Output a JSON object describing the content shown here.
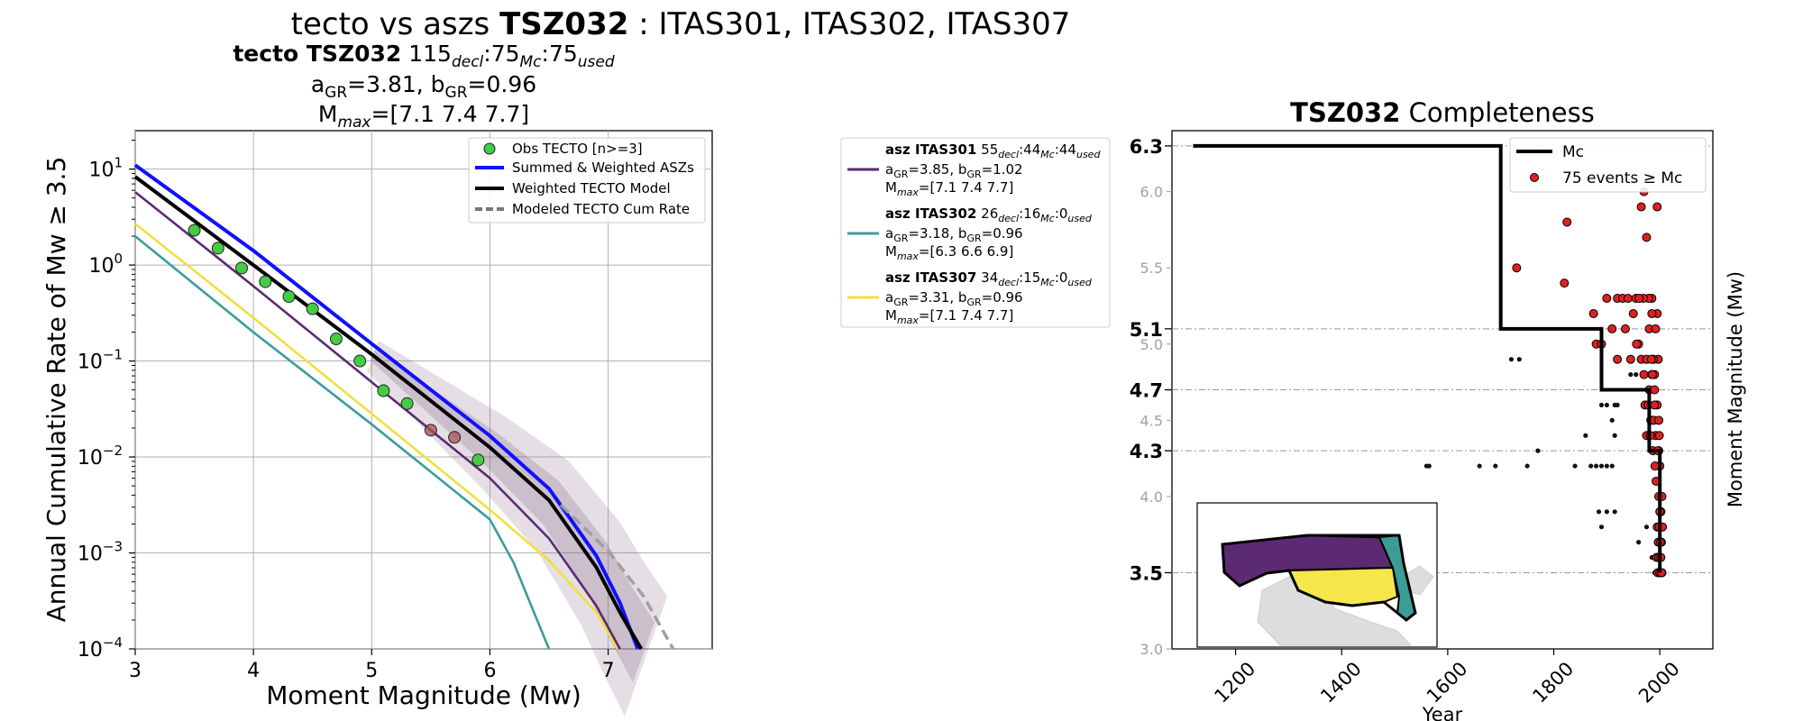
{
  "figure_title": {
    "prefix": "tecto vs aszs ",
    "zone": "TSZ032",
    "suffix": " : ITAS301, ITAS302, ITAS307"
  },
  "chart_data": [
    {
      "type": "line",
      "panel": "left",
      "title_lines": {
        "bold": "tecto TSZ032",
        "counts": [
          "115",
          "decl",
          ":75",
          "Mc",
          ":75",
          "used"
        ],
        "a_gr": "3.81",
        "b_gr": "0.96",
        "mmax": "[7.1 7.4 7.7]"
      },
      "xlabel": "Moment Magnitude (Mw)",
      "ylabel": "Annual Cumulative Rate of Mw  ≥  3.5",
      "xlim": [
        3,
        7.88
      ],
      "ylim_log10": [
        -4,
        1.4
      ],
      "y_scale": "log",
      "x_ticks": [
        "3",
        "4",
        "5",
        "6",
        "7"
      ],
      "y_ticks": [
        {
          "exp": 1,
          "label": "10",
          "sup": "1"
        },
        {
          "exp": 0,
          "label": "10",
          "sup": "0"
        },
        {
          "exp": -1,
          "label": "10",
          "sup": "−1"
        },
        {
          "exp": -2,
          "label": "10",
          "sup": "−2"
        },
        {
          "exp": -3,
          "label": "10",
          "sup": "−3"
        },
        {
          "exp": -4,
          "label": "10",
          "sup": "−4"
        }
      ],
      "grid": true,
      "legend": {
        "position": "top-right",
        "entries": [
          "Obs TECTO [n>=3]",
          "Summed & Weighted ASZs",
          "Weighted TECTO Model",
          "Modeled TECTO Cum Rate"
        ]
      },
      "observed": {
        "name": "Obs TECTO [n>=3]",
        "x": [
          3.5,
          3.7,
          3.9,
          4.1,
          4.3,
          4.5,
          4.7,
          4.9,
          5.1,
          5.3,
          5.5,
          5.7,
          5.9
        ],
        "rate": [
          2.3,
          1.5,
          0.93,
          0.67,
          0.47,
          0.35,
          0.17,
          0.1,
          0.049,
          0.036,
          0.019,
          0.016,
          0.0093
        ],
        "faded": [
          false,
          false,
          false,
          false,
          false,
          false,
          false,
          false,
          false,
          false,
          true,
          true,
          false
        ]
      },
      "series": [
        {
          "name": "Summed & Weighted ASZs",
          "color": "#1010ff",
          "x": [
            3,
            4,
            5,
            6,
            6.5,
            6.9,
            7.1,
            7.25
          ],
          "log10": [
            1.04,
            0.15,
            -0.82,
            -1.78,
            -2.33,
            -3.03,
            -3.52,
            -4.0
          ]
        },
        {
          "name": "Weighted TECTO Model",
          "color": "#000000",
          "x": [
            3,
            4,
            5,
            6,
            6.5,
            6.9,
            7.1,
            7.28
          ],
          "log10": [
            0.92,
            0.0,
            -0.93,
            -1.9,
            -2.45,
            -3.15,
            -3.62,
            -4.0
          ]
        },
        {
          "name": "Modeled TECTO Cum Rate",
          "color": "#808080",
          "x": [
            6.6,
            7.0,
            7.3,
            7.55
          ],
          "log10": [
            -2.5,
            -2.98,
            -3.45,
            -4.0
          ]
        },
        {
          "name": "ITAS301",
          "color": "#5c2a73",
          "x": [
            3,
            4,
            5,
            6,
            6.5,
            6.9,
            7.1
          ],
          "log10": [
            0.76,
            -0.22,
            -1.22,
            -2.22,
            -2.85,
            -3.55,
            -4.0
          ]
        },
        {
          "name": "ITAS302",
          "color": "#3c9c9c",
          "x": [
            3,
            4,
            5,
            6,
            6.2,
            6.35,
            6.5
          ],
          "log10": [
            0.3,
            -0.7,
            -1.66,
            -2.65,
            -3.1,
            -3.55,
            -4.0
          ]
        },
        {
          "name": "ITAS307",
          "color": "#f0e040",
          "x": [
            3,
            4,
            5,
            6,
            6.5,
            6.9,
            7.08
          ],
          "log10": [
            0.43,
            -0.55,
            -1.55,
            -2.55,
            -3.08,
            -3.62,
            -4.0
          ]
        }
      ]
    },
    {
      "type": "scatter",
      "panel": "right",
      "title_bold": "TSZ032",
      "title_rest": " Completeness",
      "xlabel": "Year",
      "ylabel": "Moment Magnitude (Mw)",
      "xlim": [
        1080,
        2100
      ],
      "ylim": [
        3.0,
        6.4
      ],
      "x_ticks": [
        "1200",
        "1400",
        "1600",
        "1800",
        "2000"
      ],
      "y_ticks_minor": [
        "3.0",
        "4.0",
        "4.5",
        "5.0",
        "5.5",
        "6.0"
      ],
      "y_ticks_major": [
        "3.5",
        "4.3",
        "4.7",
        "5.1",
        "6.3"
      ],
      "legend": {
        "position": "top-right",
        "mc_label": "Mc",
        "events_label": "75 events  ≥  Mc"
      },
      "mc_step": {
        "years": [
          1120,
          1700,
          1700,
          1890,
          1890,
          1980,
          1980,
          2000,
          2000
        ],
        "mags": [
          6.3,
          6.3,
          5.1,
          5.1,
          4.7,
          4.7,
          4.3,
          4.3,
          3.5
        ]
      },
      "events_below_mc": [
        [
          1560,
          4.2
        ],
        [
          1565,
          4.2
        ],
        [
          1660,
          4.2
        ],
        [
          1690,
          4.2
        ],
        [
          1750,
          4.2
        ],
        [
          1770,
          4.3
        ],
        [
          1840,
          4.2
        ],
        [
          1860,
          4.4
        ],
        [
          1870,
          4.2
        ],
        [
          1880,
          4.2
        ],
        [
          1890,
          4.2
        ],
        [
          1900,
          4.2
        ],
        [
          1910,
          4.2
        ],
        [
          1720,
          4.9
        ],
        [
          1735,
          4.9
        ],
        [
          1885,
          3.9
        ],
        [
          1890,
          3.8
        ],
        [
          1900,
          3.9
        ],
        [
          1915,
          3.9
        ],
        [
          1890,
          4.6
        ],
        [
          1900,
          4.6
        ],
        [
          1915,
          4.6
        ],
        [
          1910,
          4.5
        ],
        [
          1915,
          4.4
        ],
        [
          1920,
          4.6
        ],
        [
          1960,
          3.7
        ],
        [
          1975,
          3.8
        ],
        [
          1985,
          3.6
        ],
        [
          1990,
          3.5
        ],
        [
          1945,
          4.8
        ],
        [
          1955,
          4.8
        ]
      ],
      "events_above_mc": [
        [
          1730,
          5.5
        ],
        [
          1820,
          5.4
        ],
        [
          1825,
          5.8
        ],
        [
          1875,
          5.2
        ],
        [
          1880,
          5.0
        ],
        [
          1890,
          5.0
        ],
        [
          1900,
          5.3
        ],
        [
          1910,
          5.1
        ],
        [
          1920,
          4.9
        ],
        [
          1920,
          5.3
        ],
        [
          1930,
          5.3
        ],
        [
          1935,
          5.1
        ],
        [
          1940,
          5.3
        ],
        [
          1945,
          4.9
        ],
        [
          1950,
          5.2
        ],
        [
          1955,
          5.3
        ],
        [
          1960,
          5.0
        ],
        [
          1965,
          5.9
        ],
        [
          1970,
          6.0
        ],
        [
          1975,
          5.7
        ],
        [
          1980,
          5.1
        ],
        [
          1985,
          5.3
        ],
        [
          1990,
          4.8
        ],
        [
          1995,
          5.9
        ],
        [
          1995,
          5.2
        ],
        [
          1965,
          4.9
        ],
        [
          1970,
          4.8
        ],
        [
          1975,
          4.9
        ],
        [
          1980,
          4.7
        ],
        [
          1985,
          4.8
        ],
        [
          1990,
          4.7
        ],
        [
          1995,
          4.6
        ],
        [
          1972,
          4.6
        ],
        [
          1978,
          4.6
        ],
        [
          1983,
          4.5
        ],
        [
          1988,
          4.5
        ],
        [
          1992,
          4.4
        ],
        [
          1998,
          4.5
        ],
        [
          1975,
          4.4
        ],
        [
          1982,
          4.4
        ],
        [
          1987,
          4.3
        ],
        [
          1998,
          4.3
        ],
        [
          2000,
          4.2
        ],
        [
          1993,
          4.1
        ],
        [
          1998,
          4.0
        ],
        [
          2002,
          3.9
        ],
        [
          1995,
          3.8
        ],
        [
          1999,
          3.8
        ],
        [
          2003,
          3.7
        ],
        [
          1994,
          3.6
        ],
        [
          1998,
          3.6
        ],
        [
          2002,
          3.6
        ],
        [
          1996,
          3.5
        ],
        [
          2000,
          3.5
        ],
        [
          2004,
          3.5
        ],
        [
          1997,
          3.7
        ],
        [
          2001,
          3.7
        ],
        [
          2005,
          3.8
        ],
        [
          2000,
          3.9
        ],
        [
          2004,
          4.0
        ],
        [
          1991,
          4.2
        ],
        [
          1996,
          4.3
        ],
        [
          1990,
          4.6
        ],
        [
          1997,
          4.9
        ],
        [
          1988,
          4.9
        ],
        [
          1979,
          5.3
        ],
        [
          1985,
          5.2
        ],
        [
          1969,
          5.3
        ],
        [
          1961,
          5.3
        ],
        [
          1956,
          5.0
        ],
        [
          1984,
          4.9
        ],
        [
          1992,
          5.1
        ],
        [
          1986,
          4.8
        ],
        [
          1999,
          4.4
        ],
        [
          2003,
          3.5
        ]
      ]
    }
  ],
  "middle_legend": {
    "items": [
      {
        "bold": "asz ITAS301",
        "decl": "55",
        "mc": "44",
        "used": "44",
        "a_gr": "3.85",
        "b_gr": "1.02",
        "mmax": "[7.1 7.4 7.7]",
        "color": "#5c2a73"
      },
      {
        "bold": "asz ITAS302",
        "decl": "26",
        "mc": "16",
        "used": "0",
        "a_gr": "3.18",
        "b_gr": "0.96",
        "mmax": "[6.3 6.6 6.9]",
        "color": "#3c9c9c"
      },
      {
        "bold": "asz ITAS307",
        "decl": "34",
        "mc": "15",
        "used": "0",
        "a_gr": "3.31",
        "b_gr": "0.96",
        "mmax": "[7.1 7.4 7.7]",
        "color": "#f0e040"
      }
    ]
  },
  "subscripts": {
    "decl": "decl",
    "mc": "Mc",
    "used": "used",
    "gr": "GR",
    "max": "max"
  },
  "labels": {
    "a": "a",
    "b": "b",
    "mmax_prefix": "M",
    "eq": "="
  },
  "inset_map": {
    "regions": [
      "ITAS301",
      "ITAS302",
      "ITAS307"
    ]
  }
}
